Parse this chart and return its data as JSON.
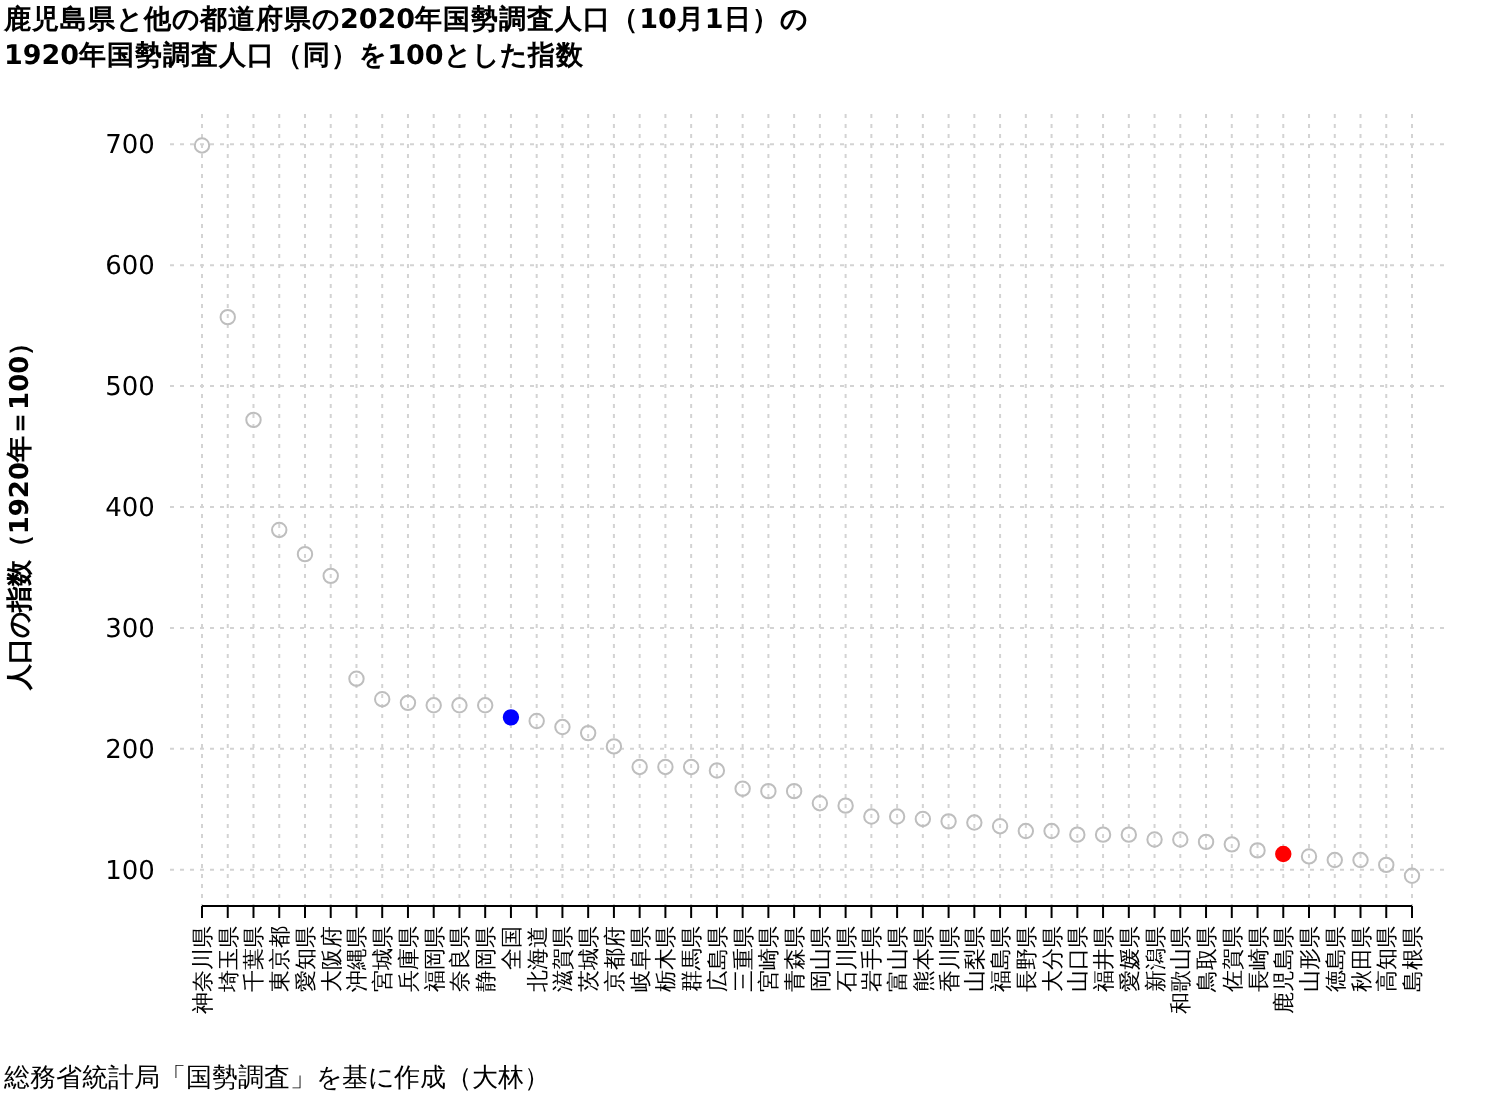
{
  "chart_data": {
    "type": "scatter",
    "title": "鹿児島県と他の都道府県の2020年国勢調査人口（10月1日）の\n1920年国勢調査人口（同）を100とした指数",
    "ylabel": "人口の指数（1920年＝100）",
    "annotations": [
      "総務省統計局「国勢調査」を基に作成（大林）"
    ],
    "categories": [
      "神奈川県",
      "埼玉県",
      "千葉県",
      "東京都",
      "愛知県",
      "大阪府",
      "沖縄県",
      "宮城県",
      "兵庫県",
      "福岡県",
      "奈良県",
      "静岡県",
      "全国",
      "北海道",
      "滋賀県",
      "茨城県",
      "京都府",
      "岐阜県",
      "栃木県",
      "群馬県",
      "広島県",
      "三重県",
      "宮崎県",
      "青森県",
      "岡山県",
      "石川県",
      "岩手県",
      "富山県",
      "熊本県",
      "香川県",
      "山梨県",
      "福島県",
      "長野県",
      "大分県",
      "山口県",
      "福井県",
      "愛媛県",
      "新潟県",
      "和歌山県",
      "鳥取県",
      "佐賀県",
      "長崎県",
      "鹿児島県",
      "山形県",
      "徳島県",
      "秋田県",
      "高知県",
      "島根県"
    ],
    "series": [
      {
        "color": "#bebebe",
        "values": [
          699,
          557,
          472,
          381,
          361,
          343,
          258,
          241,
          238,
          236,
          236,
          236,
          null,
          223,
          218,
          213,
          202,
          185,
          185,
          185,
          182,
          167,
          165,
          165,
          155,
          153,
          144,
          144,
          142,
          140,
          139,
          136,
          132,
          132,
          129,
          129,
          129,
          125,
          125,
          123,
          121,
          116,
          null,
          111,
          108,
          108,
          104,
          95
        ]
      },
      {
        "color": "#0000ff",
        "values": [
          null,
          null,
          null,
          null,
          null,
          null,
          null,
          null,
          null,
          null,
          null,
          null,
          226,
          null,
          null,
          null,
          null,
          null,
          null,
          null,
          null,
          null,
          null,
          null,
          null,
          null,
          null,
          null,
          null,
          null,
          null,
          null,
          null,
          null,
          null,
          null,
          null,
          null,
          null,
          null,
          null,
          null,
          null,
          null,
          null,
          null,
          null,
          null
        ]
      },
      {
        "color": "#ff0000",
        "values": [
          null,
          null,
          null,
          null,
          null,
          null,
          null,
          null,
          null,
          null,
          null,
          null,
          null,
          null,
          null,
          null,
          null,
          null,
          null,
          null,
          null,
          null,
          null,
          null,
          null,
          null,
          null,
          null,
          null,
          null,
          null,
          null,
          null,
          null,
          null,
          null,
          null,
          null,
          null,
          null,
          null,
          null,
          113,
          null,
          null,
          null,
          null,
          null
        ]
      }
    ],
    "ylim": [
      70,
      725
    ],
    "yticks": [
      100,
      200,
      300,
      400,
      500,
      600,
      700
    ],
    "grid": true,
    "marker": "circle"
  }
}
